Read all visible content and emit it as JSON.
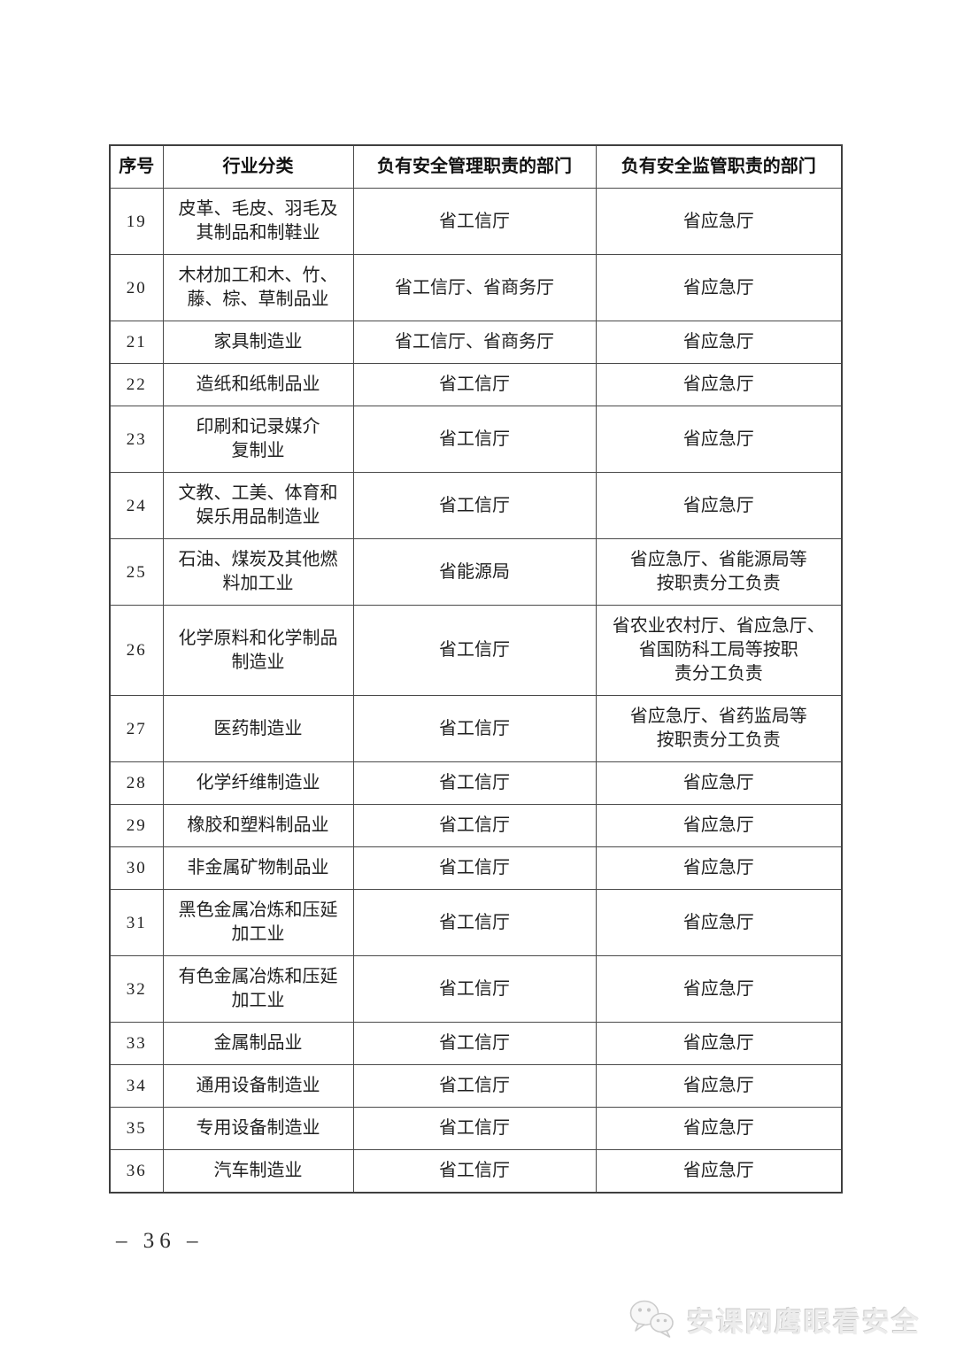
{
  "table": {
    "headers": [
      "序号",
      "行业分类",
      "负有安全管理职责的部门",
      "负有安全监管职责的部门"
    ],
    "rows": [
      {
        "no": "19",
        "industry": "皮革、毛皮、羽毛及\n其制品和制鞋业",
        "management": "省工信厅",
        "supervision": "省应急厅"
      },
      {
        "no": "20",
        "industry": "木材加工和木、竹、\n藤、棕、草制品业",
        "management": "省工信厅、省商务厅",
        "supervision": "省应急厅"
      },
      {
        "no": "21",
        "industry": "家具制造业",
        "management": "省工信厅、省商务厅",
        "supervision": "省应急厅"
      },
      {
        "no": "22",
        "industry": "造纸和纸制品业",
        "management": "省工信厅",
        "supervision": "省应急厅"
      },
      {
        "no": "23",
        "industry": "印刷和记录媒介\n复制业",
        "management": "省工信厅",
        "supervision": "省应急厅"
      },
      {
        "no": "24",
        "industry": "文教、工美、体育和\n娱乐用品制造业",
        "management": "省工信厅",
        "supervision": "省应急厅"
      },
      {
        "no": "25",
        "industry": "石油、煤炭及其他燃\n料加工业",
        "management": "省能源局",
        "supervision": "省应急厅、省能源局等\n按职责分工负责"
      },
      {
        "no": "26",
        "industry": "化学原料和化学制品\n制造业",
        "management": "省工信厅",
        "supervision": "省农业农村厅、省应急厅、\n省国防科工局等按职\n责分工负责"
      },
      {
        "no": "27",
        "industry": "医药制造业",
        "management": "省工信厅",
        "supervision": "省应急厅、省药监局等\n按职责分工负责"
      },
      {
        "no": "28",
        "industry": "化学纤维制造业",
        "management": "省工信厅",
        "supervision": "省应急厅"
      },
      {
        "no": "29",
        "industry": "橡胶和塑料制品业",
        "management": "省工信厅",
        "supervision": "省应急厅"
      },
      {
        "no": "30",
        "industry": "非金属矿物制品业",
        "management": "省工信厅",
        "supervision": "省应急厅"
      },
      {
        "no": "31",
        "industry": "黑色金属冶炼和压延\n加工业",
        "management": "省工信厅",
        "supervision": "省应急厅"
      },
      {
        "no": "32",
        "industry": "有色金属冶炼和压延\n加工业",
        "management": "省工信厅",
        "supervision": "省应急厅"
      },
      {
        "no": "33",
        "industry": "金属制品业",
        "management": "省工信厅",
        "supervision": "省应急厅"
      },
      {
        "no": "34",
        "industry": "通用设备制造业",
        "management": "省工信厅",
        "supervision": "省应急厅"
      },
      {
        "no": "35",
        "industry": "专用设备制造业",
        "management": "省工信厅",
        "supervision": "省应急厅"
      },
      {
        "no": "36",
        "industry": "汽车制造业",
        "management": "省工信厅",
        "supervision": "省应急厅"
      }
    ]
  },
  "footer": {
    "page_number": "–  36  –"
  },
  "watermark": {
    "text": "安课网鹰眼看安全",
    "logo_icon": "wechat-bubbles-icon"
  },
  "colors": {
    "page_background": "#ffffff",
    "table_border": "#4a4a4a",
    "text": "#1f1f1f",
    "watermark_gray": "#ececec"
  }
}
